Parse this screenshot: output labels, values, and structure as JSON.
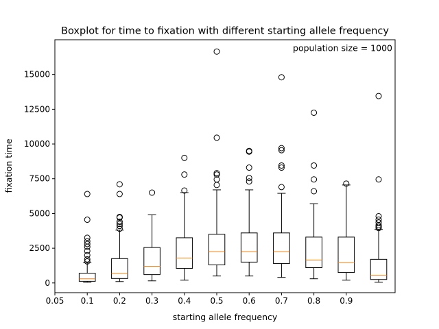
{
  "chart_data": {
    "type": "boxplot",
    "title": "Boxplot for time to fixation with different starting allele frequency",
    "xlabel": "starting allele frequency",
    "ylabel": "fixation time",
    "annotation": "population size = 1000",
    "x_ticks": [
      "0.05",
      "0.1",
      "0.2",
      "0.3",
      "0.4",
      "0.5",
      "0.6",
      "0.7",
      "0.8",
      "0.9"
    ],
    "y_ticks": [
      0,
      2500,
      5000,
      7500,
      10000,
      12500,
      15000
    ],
    "y_tick_labels": [
      "0",
      "2500",
      "5000",
      "7500",
      "10000",
      "12500",
      "15000"
    ],
    "ylim": [
      -700,
      17500
    ],
    "box_color": "#000000",
    "median_color": "#ff7f0e",
    "boxes": [
      {
        "whisker_low": 50,
        "q1": 120,
        "median": 300,
        "q3": 700,
        "whisker_high": 1450,
        "outliers": [
          1550,
          1700,
          2000,
          2300,
          2600,
          2800,
          3000,
          3250,
          4550,
          6400
        ]
      },
      {
        "whisker_low": 100,
        "q1": 320,
        "median": 700,
        "q3": 1750,
        "whisker_high": 3800,
        "outliers": [
          3900,
          4100,
          4250,
          4400,
          4700,
          4750,
          6400,
          7100
        ]
      },
      {
        "whisker_low": 150,
        "q1": 600,
        "median": 1200,
        "q3": 2550,
        "whisker_high": 4900,
        "outliers": [
          6500
        ]
      },
      {
        "whisker_low": 200,
        "q1": 1050,
        "median": 1800,
        "q3": 3250,
        "whisker_high": 6500,
        "outliers": [
          6650,
          7800,
          9000
        ]
      },
      {
        "whisker_low": 500,
        "q1": 1300,
        "median": 2250,
        "q3": 3500,
        "whisker_high": 6700,
        "outliers": [
          7050,
          7450,
          7800,
          7900,
          10450,
          16650
        ]
      },
      {
        "whisker_low": 500,
        "q1": 1500,
        "median": 2250,
        "q3": 3600,
        "whisker_high": 6700,
        "outliers": [
          7300,
          7550,
          8300,
          9450,
          9500
        ]
      },
      {
        "whisker_low": 400,
        "q1": 1400,
        "median": 2250,
        "q3": 3600,
        "whisker_high": 6450,
        "outliers": [
          6900,
          8300,
          8450,
          9550,
          9700,
          14800
        ]
      },
      {
        "whisker_low": 300,
        "q1": 1100,
        "median": 1650,
        "q3": 3300,
        "whisker_high": 5700,
        "outliers": [
          6600,
          7450,
          8450,
          12250
        ]
      },
      {
        "whisker_low": 200,
        "q1": 750,
        "median": 1450,
        "q3": 3300,
        "whisker_high": 7050,
        "outliers": [
          7150
        ]
      },
      {
        "whisker_low": 50,
        "q1": 250,
        "median": 550,
        "q3": 1700,
        "whisker_high": 3850,
        "outliers": [
          3950,
          4050,
          4150,
          4350,
          4550,
          4800,
          7450,
          13450
        ]
      }
    ]
  }
}
